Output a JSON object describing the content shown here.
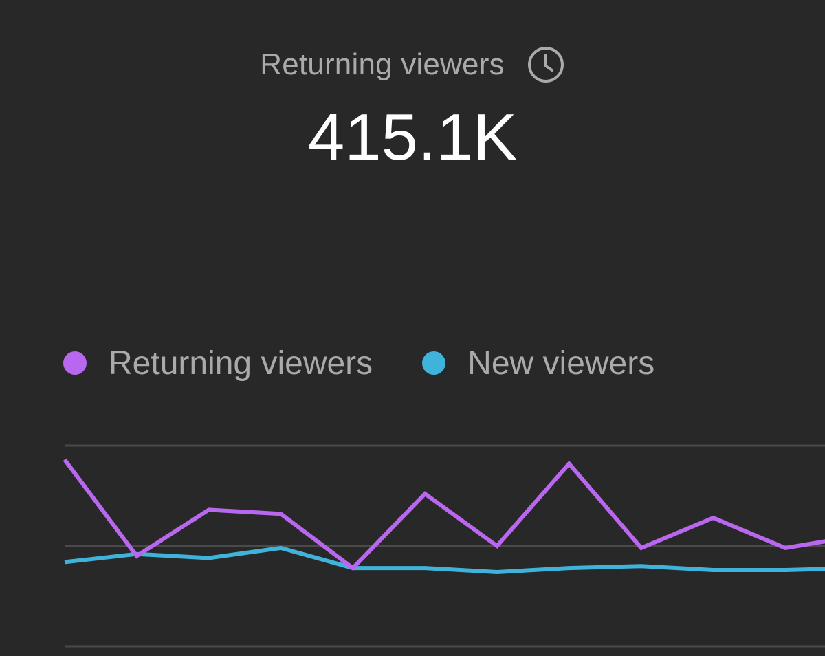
{
  "card": {
    "title": "Returning viewers",
    "title_icon": "clock-icon",
    "metric_value": "415.1K"
  },
  "legend": [
    {
      "label": "Returning viewers",
      "color": "#b967ee"
    },
    {
      "label": "New viewers",
      "color": "#3fb3d9"
    }
  ],
  "chart_data": {
    "type": "line",
    "title": "",
    "xlabel": "",
    "ylabel": "",
    "ylim": [
      0,
      100
    ],
    "grid": true,
    "legend_position": "top-left",
    "x": [
      1,
      2,
      3,
      4,
      5,
      6,
      7,
      8,
      9,
      10,
      11,
      12
    ],
    "series": [
      {
        "name": "Returning viewers",
        "color": "#b967ee",
        "values": [
          93,
          45,
          68,
          66,
          39,
          76,
          50,
          91,
          49,
          64,
          49,
          55
        ]
      },
      {
        "name": "New viewers",
        "color": "#3fb3d9",
        "values": [
          42,
          46,
          44,
          49,
          39,
          39,
          37,
          39,
          40,
          38,
          38,
          39
        ]
      }
    ]
  }
}
